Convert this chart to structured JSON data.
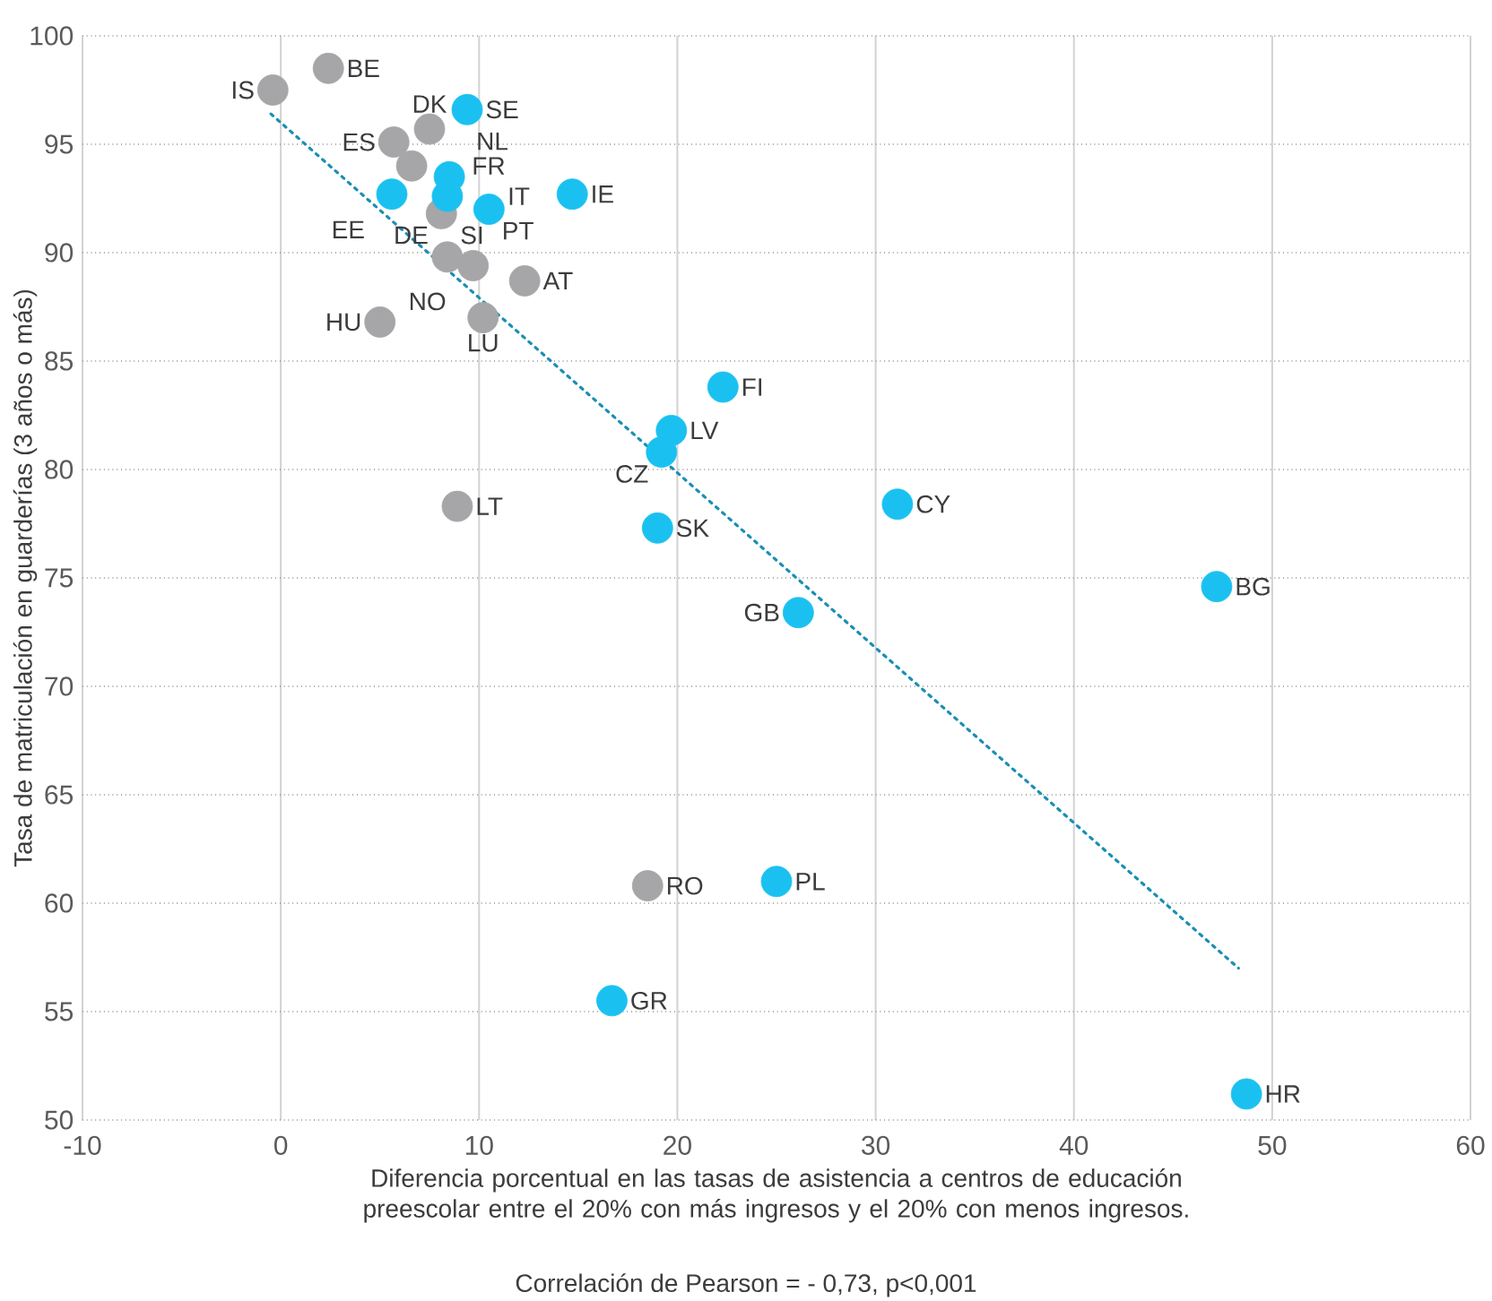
{
  "chart_data": {
    "type": "scatter",
    "xlabel": "Diferencia porcentual en las tasas de asistencia a centros de educación preescolar entre el 20% con más ingresos y el 20% con menos ingresos.",
    "ylabel": "Tasa de matriculación en guarderías (3 años o más)",
    "xlim": [
      -10,
      60
    ],
    "xticks": [
      -10,
      0,
      10,
      20,
      30,
      40,
      50,
      60
    ],
    "ylim": [
      50,
      100
    ],
    "yticks": [
      50,
      55,
      60,
      65,
      70,
      75,
      80,
      85,
      90,
      95,
      100
    ],
    "grid": true,
    "marker": "circle",
    "series": [
      {
        "color": "#a6a6a8",
        "x": [
          -0.4,
          2.4,
          7.5,
          5.7,
          6.6,
          8.1,
          8.4,
          9.7,
          12.3,
          5.0,
          10.2,
          8.9,
          18.5
        ],
        "values": [
          97.5,
          98.5,
          95.7,
          95.1,
          94.0,
          91.8,
          89.8,
          89.4,
          88.7,
          86.8,
          87.0,
          78.3,
          60.8
        ]
      },
      {
        "color": "#1ac1f0",
        "x": [
          9.4,
          8.5,
          5.6,
          8.4,
          10.5,
          14.7,
          22.3,
          19.7,
          19.2,
          31.1,
          19.0,
          47.2,
          26.1,
          25.0,
          16.7,
          48.7
        ],
        "values": [
          96.6,
          93.5,
          92.7,
          92.6,
          92.0,
          92.7,
          83.8,
          81.8,
          80.8,
          78.4,
          77.3,
          74.6,
          73.4,
          61.0,
          55.5,
          51.2
        ]
      },
      {
        "type": "line",
        "color": "#1a8fb3",
        "line_style": "dotted",
        "marker": "none",
        "x": [
          -0.5,
          48.3
        ],
        "values": [
          96.4,
          57.0
        ]
      }
    ],
    "annotations": [
      {
        "text": "IS",
        "x": -0.4,
        "y": 97.5
      },
      {
        "text": "BE",
        "x": 2.4,
        "y": 98.5
      },
      {
        "text": "DK",
        "x": 7.5,
        "y": 95.7
      },
      {
        "text": "ES",
        "x": 5.7,
        "y": 95.1
      },
      {
        "text": "FR",
        "x": 6.6,
        "y": 94.0
      },
      {
        "text": "DE",
        "x": 8.1,
        "y": 91.8
      },
      {
        "text": "SI",
        "x": 8.4,
        "y": 89.8
      },
      {
        "text": "NO",
        "x": 9.7,
        "y": 89.4
      },
      {
        "text": "AT",
        "x": 12.3,
        "y": 88.7
      },
      {
        "text": "HU",
        "x": 5.0,
        "y": 86.8
      },
      {
        "text": "LU",
        "x": 10.2,
        "y": 87.0
      },
      {
        "text": "LT",
        "x": 8.9,
        "y": 78.3
      },
      {
        "text": "RO",
        "x": 18.5,
        "y": 60.8
      },
      {
        "text": "SE",
        "x": 9.4,
        "y": 96.6
      },
      {
        "text": "NL",
        "x": 8.5,
        "y": 93.5
      },
      {
        "text": "EE",
        "x": 5.6,
        "y": 92.7
      },
      {
        "text": "IT",
        "x": 8.4,
        "y": 92.6
      },
      {
        "text": "PT",
        "x": 10.5,
        "y": 92.0
      },
      {
        "text": "IE",
        "x": 14.7,
        "y": 92.7
      },
      {
        "text": "FI",
        "x": 22.3,
        "y": 83.8
      },
      {
        "text": "LV",
        "x": 19.7,
        "y": 81.8
      },
      {
        "text": "CZ",
        "x": 19.2,
        "y": 80.8
      },
      {
        "text": "CY",
        "x": 31.1,
        "y": 78.4
      },
      {
        "text": "SK",
        "x": 19.0,
        "y": 77.3
      },
      {
        "text": "BG",
        "x": 47.2,
        "y": 74.6
      },
      {
        "text": "GB",
        "x": 26.1,
        "y": 73.4
      },
      {
        "text": "PL",
        "x": 25.0,
        "y": 61.0
      },
      {
        "text": "GR",
        "x": 16.7,
        "y": 55.5
      },
      {
        "text": "HR",
        "x": 48.7,
        "y": 51.2
      },
      "Correlación de Pearson = - 0,73, p<0,001"
    ]
  }
}
